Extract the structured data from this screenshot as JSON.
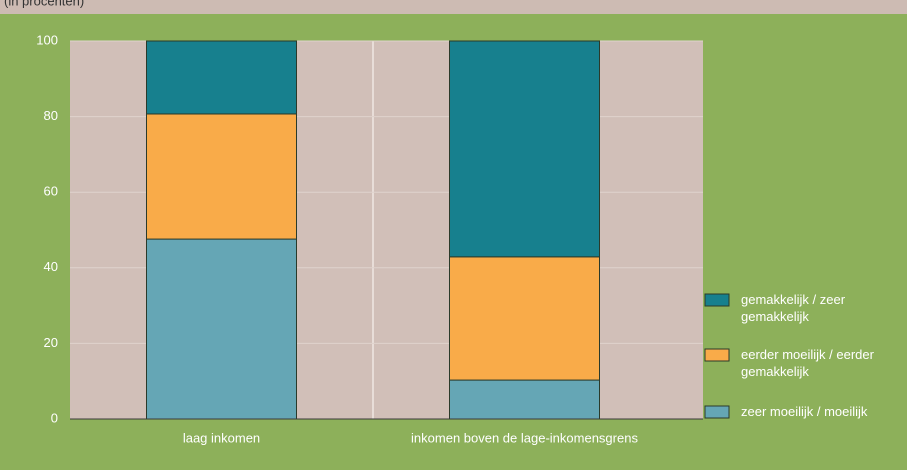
{
  "chart_data": {
    "type": "stacked_bar",
    "subtitle": "(in procenten)",
    "categories": [
      "laag inkomen",
      "inkomen boven de lage-inkomensgrens"
    ],
    "series": [
      {
        "name": "zeer moeilijk / moeilijk",
        "color": "#65a6b5",
        "values": [
          47.6,
          10.3
        ]
      },
      {
        "name": "eerder moeilijk / eerder gemakkelijk",
        "color": "#f9ab49",
        "values": [
          33.1,
          32.6
        ]
      },
      {
        "name": "gemakkelijk / zeer gemakkelijk",
        "color": "#17808e",
        "values": [
          19.3,
          57.1
        ]
      }
    ],
    "ylim": [
      0,
      100
    ],
    "yticks": [
      0,
      20,
      40,
      60,
      80,
      100
    ],
    "grid": true
  }
}
